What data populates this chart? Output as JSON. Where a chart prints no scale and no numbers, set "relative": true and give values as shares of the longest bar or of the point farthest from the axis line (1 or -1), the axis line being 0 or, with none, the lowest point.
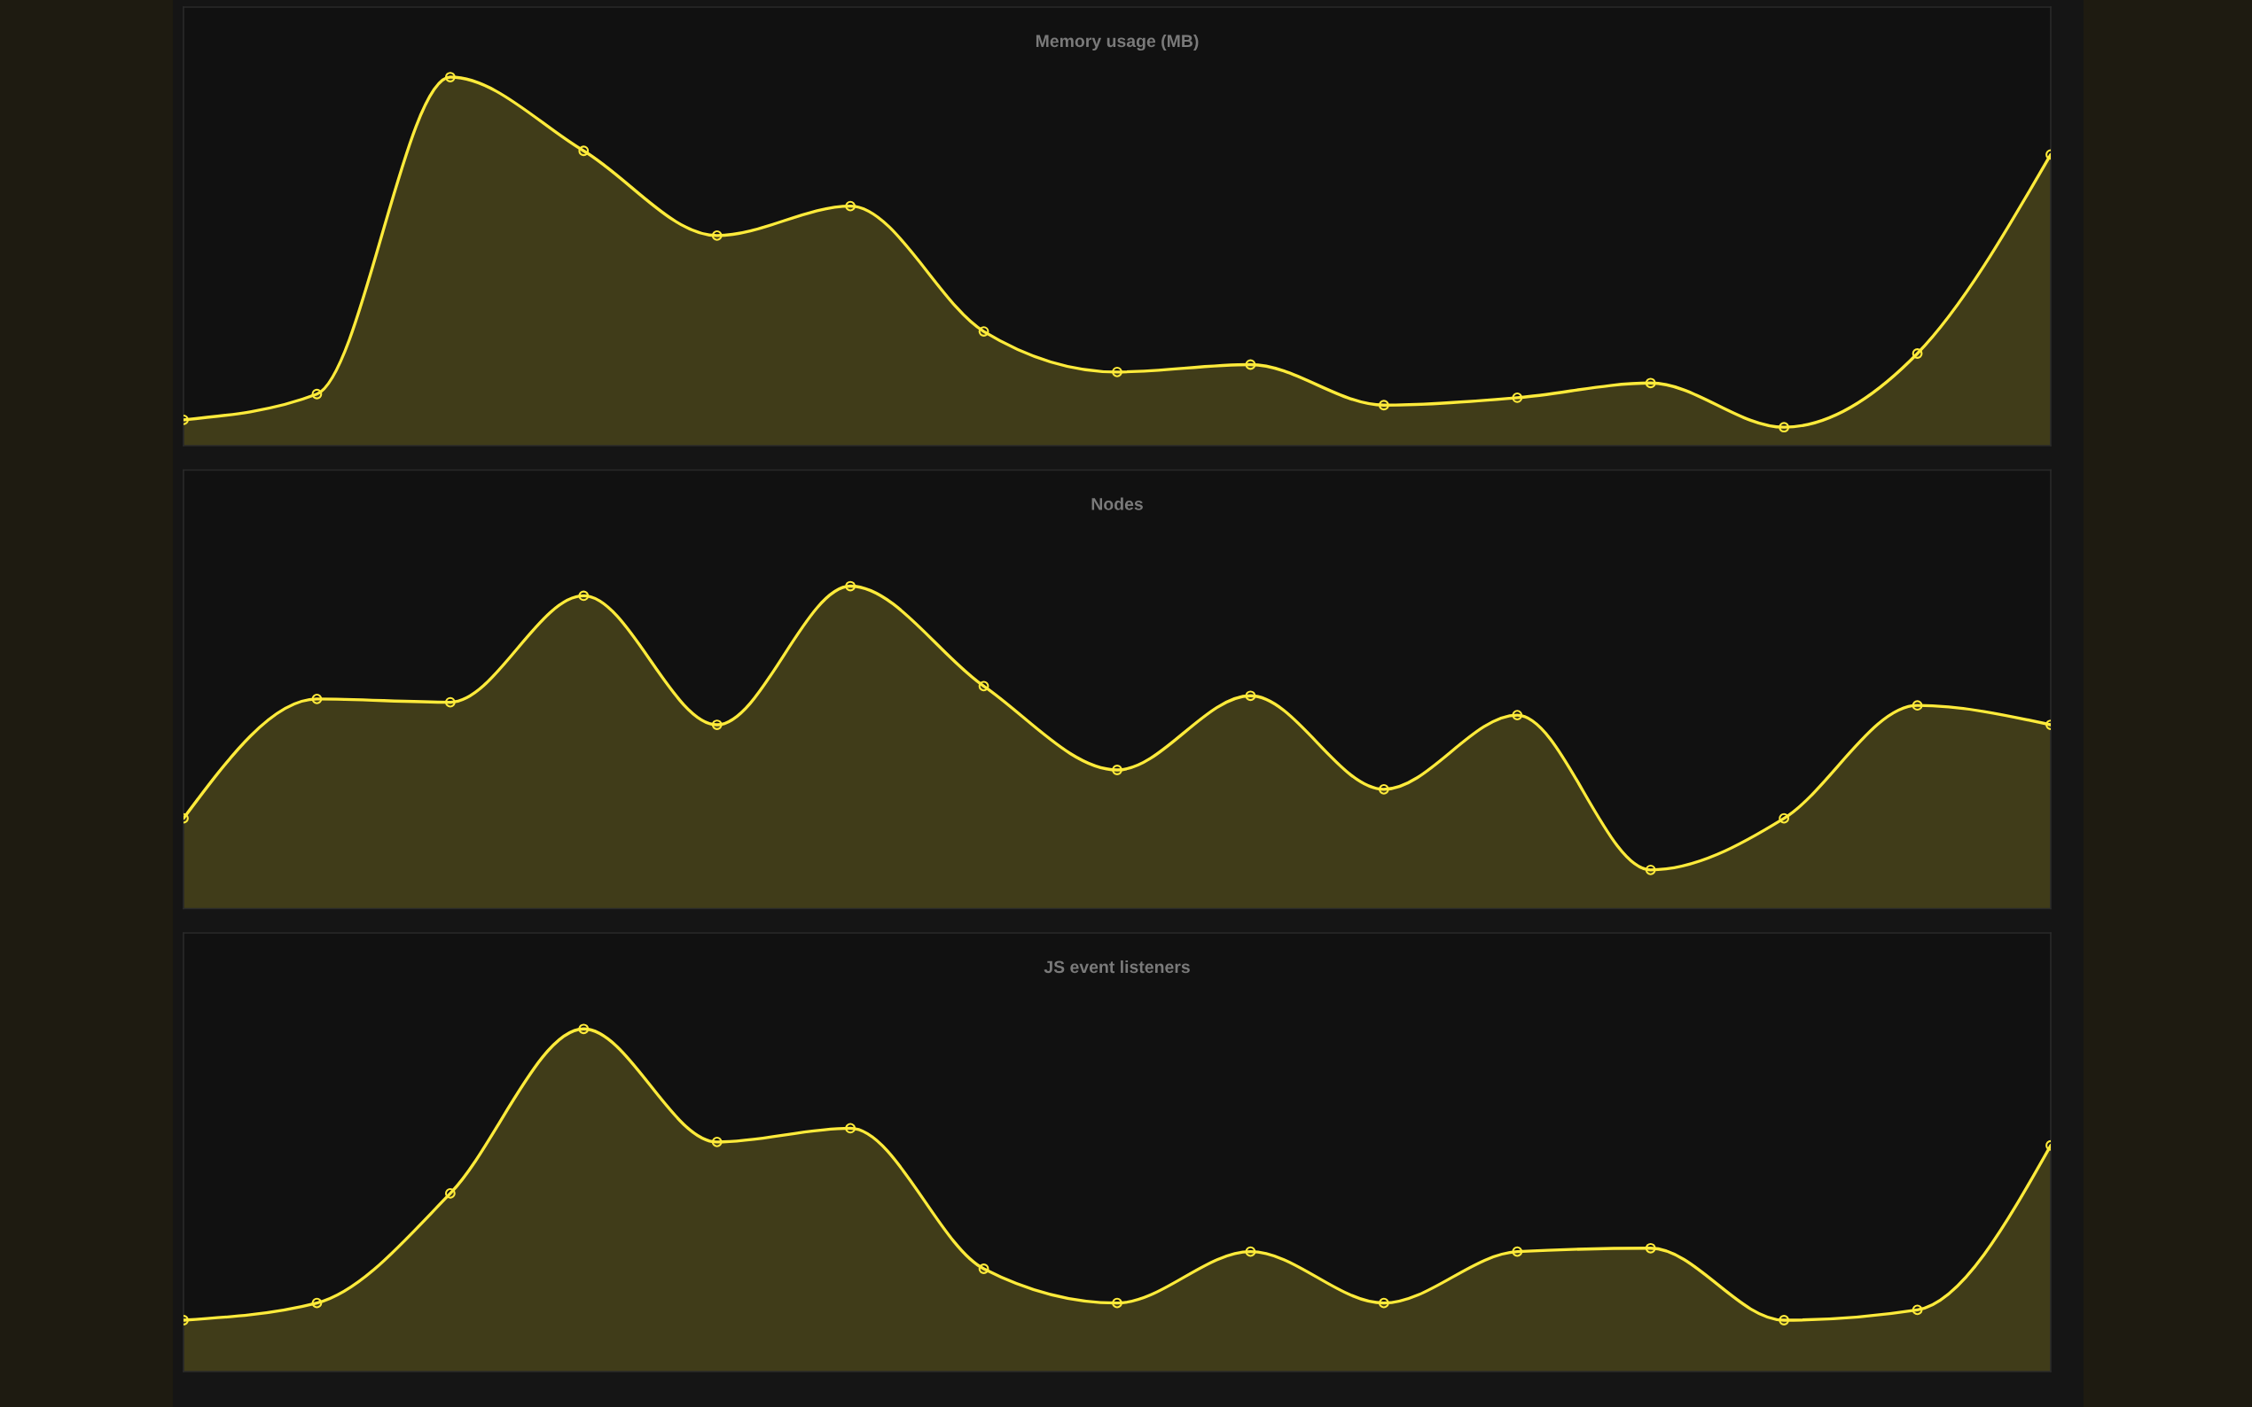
{
  "chart_data": [
    {
      "type": "area",
      "title": "Memory usage (MB)",
      "relative": true,
      "marker": "circle",
      "categories": [
        null,
        null,
        null,
        null,
        null,
        null,
        null,
        null,
        null,
        null,
        null,
        null,
        null,
        null,
        null
      ],
      "series": [
        {
          "color": "#ffeb3b",
          "values": [
            0.07,
            0.14,
            1,
            0.8,
            0.57,
            0.65,
            0.31,
            0.2,
            0.22,
            0.11,
            0.13,
            0.17,
            0.05,
            0.25,
            0.79
          ]
        }
      ]
    },
    {
      "type": "area",
      "title": "Nodes",
      "relative": true,
      "marker": "circle",
      "categories": [
        null,
        null,
        null,
        null,
        null,
        null,
        null,
        null,
        null,
        null,
        null,
        null,
        null,
        null,
        null
      ],
      "series": [
        {
          "color": "#ffeb3b",
          "values": [
            0.28,
            0.65,
            0.64,
            0.97,
            0.57,
            1,
            0.69,
            0.43,
            0.66,
            0.37,
            0.6,
            0.12,
            0.28,
            0.63,
            0.57
          ]
        }
      ]
    },
    {
      "type": "area",
      "title": "JS event listeners",
      "relative": true,
      "marker": "circle",
      "categories": [
        null,
        null,
        null,
        null,
        null,
        null,
        null,
        null,
        null,
        null,
        null,
        null,
        null,
        null,
        null
      ],
      "series": [
        {
          "color": "#ffeb3b",
          "values": [
            0.15,
            0.2,
            0.52,
            1,
            0.67,
            0.71,
            0.3,
            0.2,
            0.35,
            0.2,
            0.35,
            0.36,
            0.15,
            0.18,
            0.66
          ]
        }
      ]
    }
  ]
}
